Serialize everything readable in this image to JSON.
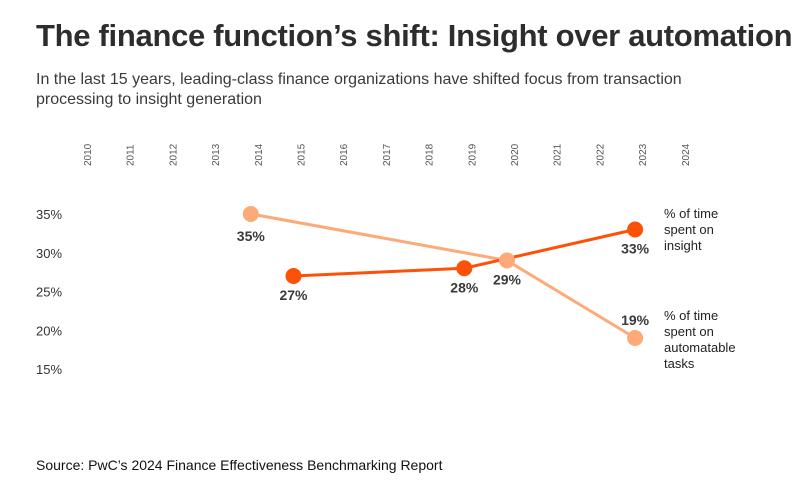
{
  "title": "The finance function’s shift: Insight over automation",
  "subtitle": "In the last 15 years, leading-class finance organizations have shifted focus from transaction processing to insight generation",
  "source": "Source: PwC’s 2024 Finance Effectiveness Benchmarking Report",
  "chart_data": {
    "type": "line",
    "title": "The finance function’s shift: Insight over automation",
    "x_ticks": [
      "2010",
      "2011",
      "2012",
      "2013",
      "2014",
      "2015",
      "2016",
      "2017",
      "2018",
      "2019",
      "2020",
      "2021",
      "2022",
      "2023",
      "2024"
    ],
    "y_ticks": [
      "35%",
      "30%",
      "25%",
      "20%",
      "15%"
    ],
    "ylim": [
      15,
      35
    ],
    "xlim": [
      2010,
      2024
    ],
    "grid": false,
    "legend_placement": "right, end of lines",
    "series": [
      {
        "name": "% of time spent on insight",
        "color": "#FD5108",
        "points": [
          {
            "x": 2015,
            "y": 27,
            "label": "27%"
          },
          {
            "x": 2019,
            "y": 28,
            "label": "28%"
          },
          {
            "x": 2023,
            "y": 33,
            "label": "33%"
          }
        ]
      },
      {
        "name": "% of time spent on automatable tasks",
        "color": "#FDAA78",
        "points": [
          {
            "x": 2014,
            "y": 35,
            "label": "35%"
          },
          {
            "x": 2020,
            "y": 29,
            "label": "29%"
          },
          {
            "x": 2023,
            "y": 19,
            "label": "19%"
          }
        ]
      }
    ]
  }
}
